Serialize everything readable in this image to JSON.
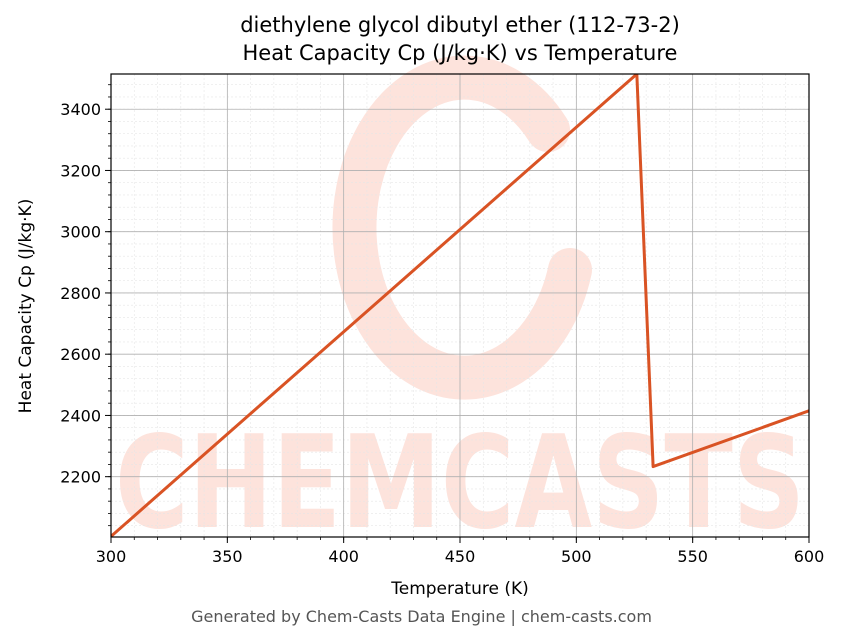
{
  "chart_data": {
    "type": "line",
    "title_lines": [
      "diethylene glycol dibutyl ether (112-73-2)",
      "Heat Capacity Cp (J/kg·K) vs Temperature"
    ],
    "xlabel": "Temperature (K)",
    "ylabel": "Heat Capacity Cp (J/kg·K)",
    "xlim": [
      300,
      600
    ],
    "ylim": [
      2003,
      3515
    ],
    "x_ticks": [
      300,
      350,
      400,
      450,
      500,
      550,
      600
    ],
    "y_ticks": [
      2200,
      2400,
      2600,
      2800,
      3000,
      3200,
      3400
    ],
    "grid": true,
    "series": [
      {
        "x": [
          300,
          526,
          533,
          600
        ],
        "y": [
          2005,
          3515,
          2233,
          2415
        ]
      }
    ]
  },
  "colors": {
    "line": "#d95324",
    "watermark": "#fde3dc",
    "grid_major": "#b0b0b0",
    "grid_minor": "#e6e6e6"
  },
  "watermark": {
    "text": "CHEMCASTS"
  },
  "footer": {
    "text": "Generated by Chem-Casts Data Engine | chem-casts.com"
  }
}
